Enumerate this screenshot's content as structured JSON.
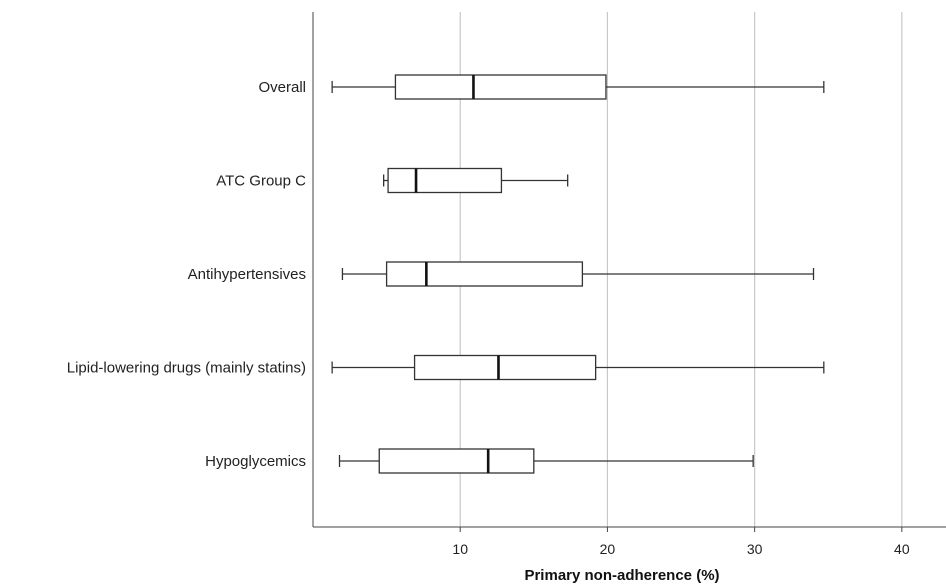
{
  "chart_data": {
    "type": "boxplot",
    "orientation": "horizontal",
    "xlabel": "Primary non-adherence (%)",
    "ylabel": "",
    "xlim": [
      0,
      43
    ],
    "xticks": [
      10,
      20,
      30,
      40
    ],
    "grid": "vertical gridlines at ticks",
    "categories": [
      "Overall",
      "ATC Group C",
      "Antihypertensives",
      "Lipid-lowering drugs (mainly statins)",
      "Hypoglycemics"
    ],
    "boxes": [
      {
        "label": "Overall",
        "min": 1.3,
        "q1": 5.6,
        "median": 10.9,
        "q3": 19.9,
        "max": 34.7
      },
      {
        "label": "ATC Group C",
        "min": 4.8,
        "q1": 5.1,
        "median": 7.0,
        "q3": 12.8,
        "max": 17.3
      },
      {
        "label": "Antihypertensives",
        "min": 2.0,
        "q1": 5.0,
        "median": 7.7,
        "q3": 18.3,
        "max": 34.0
      },
      {
        "label": "Lipid-lowering drugs (mainly statins)",
        "min": 1.3,
        "q1": 6.9,
        "median": 12.6,
        "q3": 19.2,
        "max": 34.7
      },
      {
        "label": "Hypoglycemics",
        "min": 1.8,
        "q1": 4.5,
        "median": 11.9,
        "q3": 15.0,
        "max": 29.9
      }
    ]
  }
}
